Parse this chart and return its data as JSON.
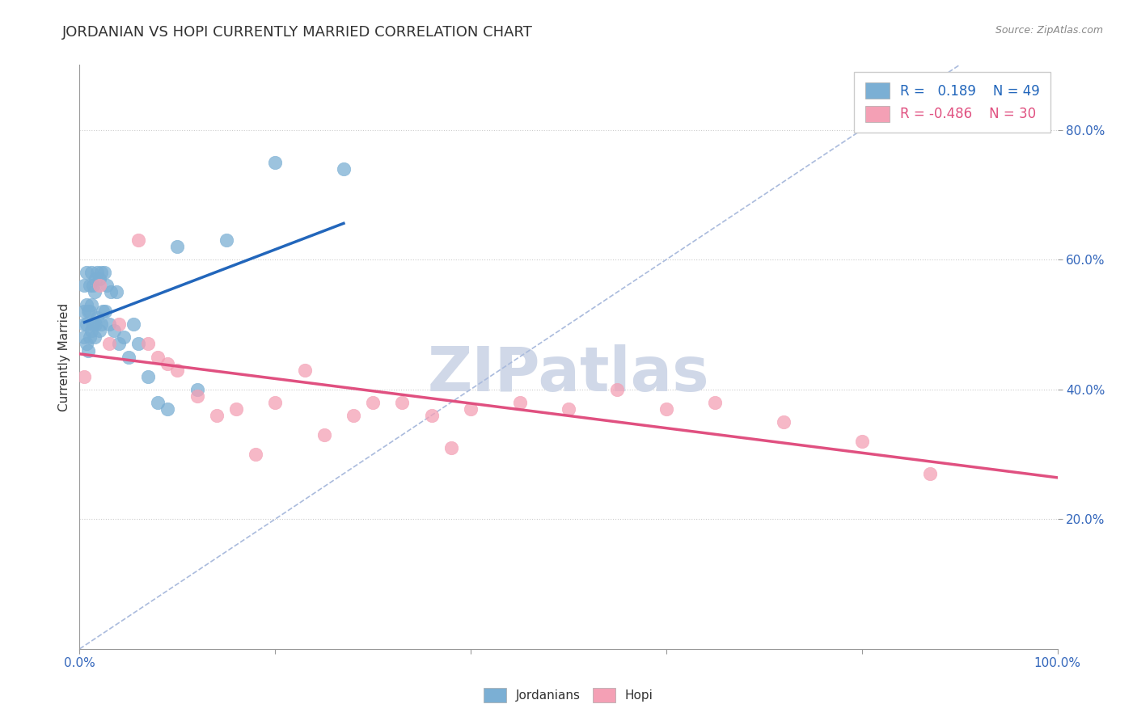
{
  "title": "JORDANIAN VS HOPI CURRENTLY MARRIED CORRELATION CHART",
  "source_text": "Source: ZipAtlas.com",
  "ylabel": "Currently Married",
  "x_min": 0.0,
  "x_max": 1.0,
  "y_min": 0.0,
  "y_max": 0.9,
  "x_ticks": [
    0.0,
    0.2,
    0.4,
    0.6,
    0.8,
    1.0
  ],
  "x_tick_labels": [
    "0.0%",
    "",
    "",
    "",
    "",
    "100.0%"
  ],
  "y_ticks": [
    0.2,
    0.4,
    0.6,
    0.8
  ],
  "y_tick_labels": [
    "20.0%",
    "40.0%",
    "60.0%",
    "80.0%"
  ],
  "jordanian_R": 0.189,
  "jordanian_N": 49,
  "hopi_R": -0.486,
  "hopi_N": 30,
  "jordanian_color": "#7bafd4",
  "hopi_color": "#f4a0b5",
  "jordanian_line_color": "#2266bb",
  "hopi_line_color": "#e05080",
  "ref_line_color": "#aabbdd",
  "background_color": "#ffffff",
  "grid_color": "#cccccc",
  "title_fontsize": 13,
  "label_fontsize": 11,
  "tick_fontsize": 11,
  "legend_fontsize": 12,
  "watermark_text": "ZIPatlas",
  "watermark_color": "#d0d8e8",
  "watermark_fontsize": 55,
  "jordanian_x": [
    0.005,
    0.005,
    0.005,
    0.005,
    0.007,
    0.007,
    0.007,
    0.007,
    0.009,
    0.009,
    0.01,
    0.01,
    0.01,
    0.012,
    0.012,
    0.012,
    0.014,
    0.014,
    0.015,
    0.015,
    0.016,
    0.016,
    0.018,
    0.018,
    0.02,
    0.02,
    0.022,
    0.022,
    0.024,
    0.025,
    0.026,
    0.028,
    0.03,
    0.032,
    0.035,
    0.038,
    0.04,
    0.045,
    0.05,
    0.055,
    0.06,
    0.07,
    0.08,
    0.09,
    0.1,
    0.12,
    0.15,
    0.2,
    0.27
  ],
  "jordanian_y": [
    0.48,
    0.5,
    0.52,
    0.56,
    0.47,
    0.5,
    0.53,
    0.58,
    0.46,
    0.52,
    0.48,
    0.52,
    0.56,
    0.49,
    0.53,
    0.58,
    0.5,
    0.56,
    0.48,
    0.55,
    0.5,
    0.57,
    0.51,
    0.58,
    0.49,
    0.57,
    0.5,
    0.58,
    0.52,
    0.58,
    0.52,
    0.56,
    0.5,
    0.55,
    0.49,
    0.55,
    0.47,
    0.48,
    0.45,
    0.5,
    0.47,
    0.42,
    0.38,
    0.37,
    0.62,
    0.4,
    0.63,
    0.75,
    0.74
  ],
  "hopi_x": [
    0.005,
    0.02,
    0.03,
    0.04,
    0.06,
    0.07,
    0.08,
    0.09,
    0.1,
    0.12,
    0.14,
    0.16,
    0.18,
    0.2,
    0.23,
    0.25,
    0.28,
    0.3,
    0.33,
    0.36,
    0.38,
    0.4,
    0.45,
    0.5,
    0.55,
    0.6,
    0.65,
    0.72,
    0.8,
    0.87
  ],
  "hopi_y": [
    0.42,
    0.56,
    0.47,
    0.5,
    0.63,
    0.47,
    0.45,
    0.44,
    0.43,
    0.39,
    0.36,
    0.37,
    0.3,
    0.38,
    0.43,
    0.33,
    0.36,
    0.38,
    0.38,
    0.36,
    0.31,
    0.37,
    0.38,
    0.37,
    0.4,
    0.37,
    0.38,
    0.35,
    0.32,
    0.27
  ],
  "ref_line_x": [
    0.0,
    0.9
  ],
  "ref_line_y": [
    0.0,
    0.9
  ]
}
